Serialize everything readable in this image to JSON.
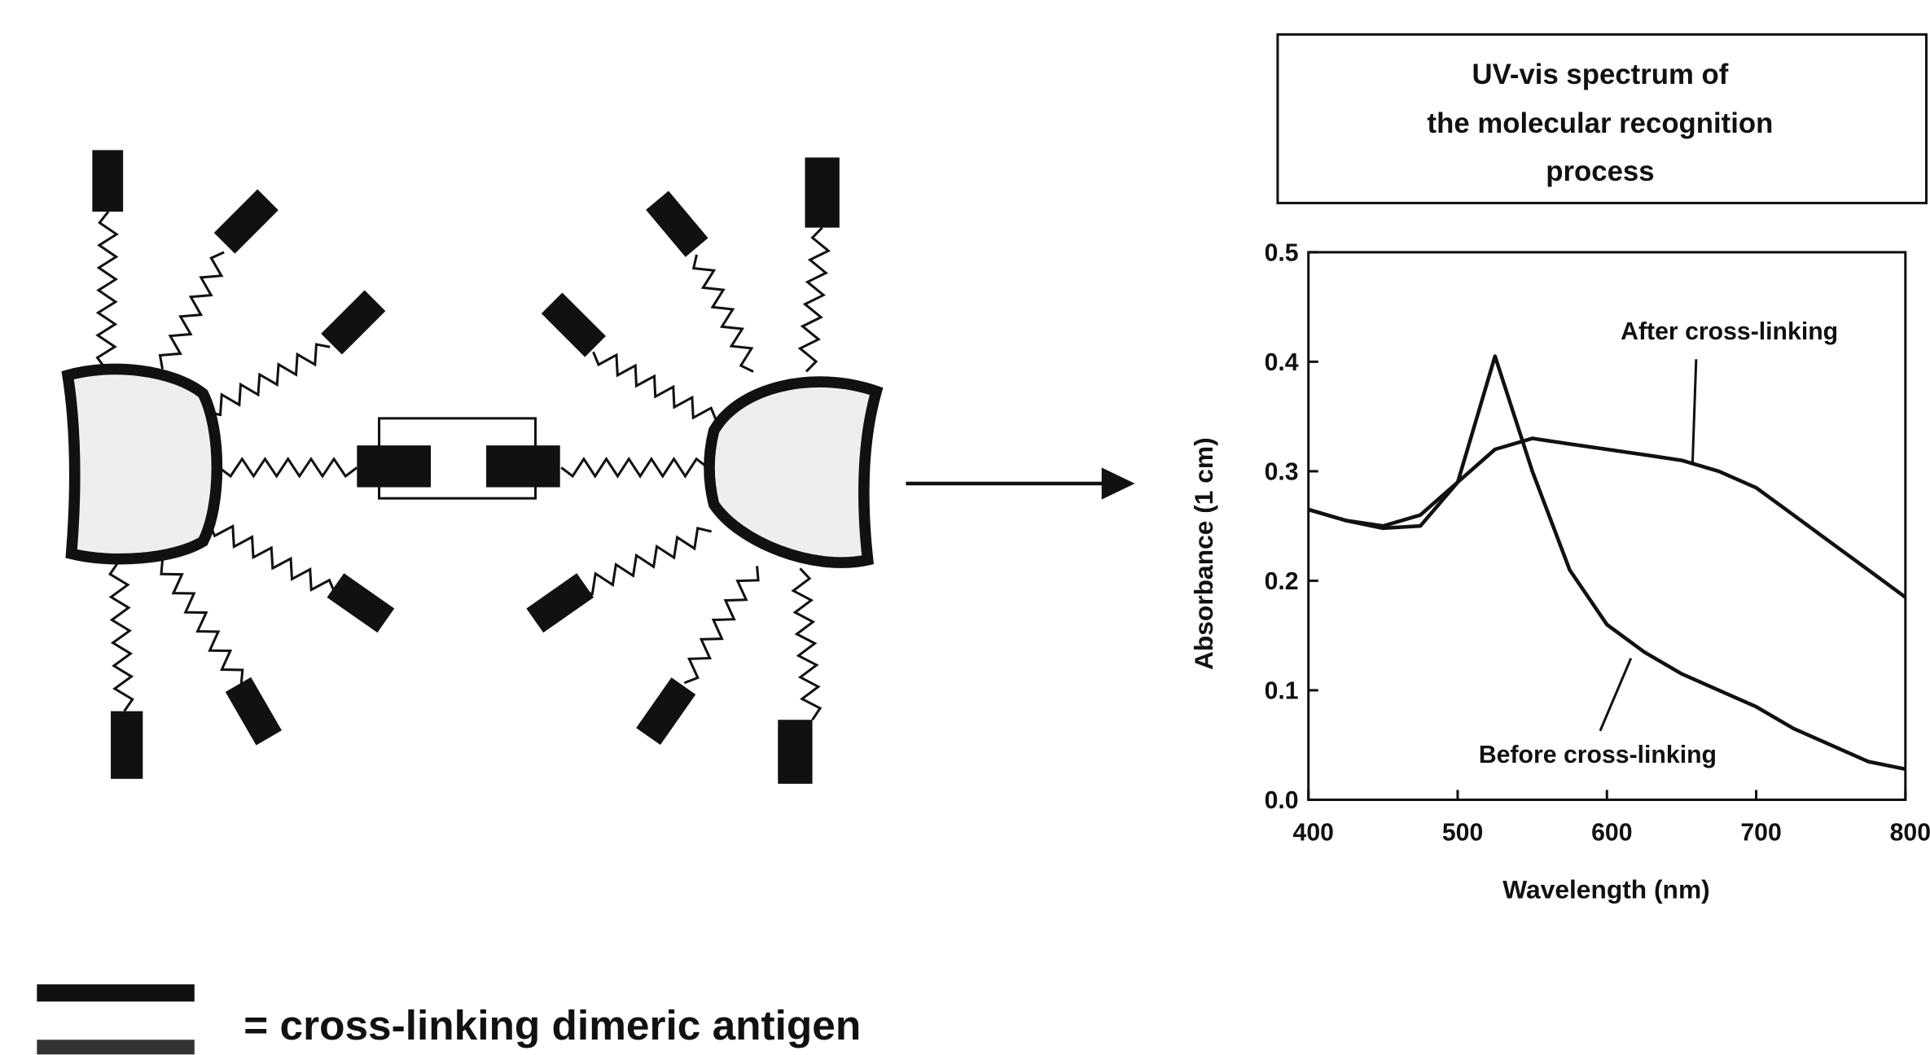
{
  "chart_data": {
    "type": "line",
    "title": [
      "UV-vis spectrum of",
      "the molecular recognition",
      "process"
    ],
    "x_label": "Wavelength (nm)",
    "y_label": "Absorbance (1 cm)",
    "x": [
      400,
      425,
      450,
      475,
      500,
      525,
      550,
      575,
      600,
      625,
      650,
      675,
      700,
      725,
      750,
      775,
      800
    ],
    "series": [
      {
        "name": "After cross-linking",
        "color": "#111111",
        "values": [
          0.265,
          0.255,
          0.25,
          0.26,
          0.29,
          0.32,
          0.33,
          0.325,
          0.32,
          0.315,
          0.31,
          0.3,
          0.285,
          0.26,
          0.235,
          0.21,
          0.185
        ]
      },
      {
        "name": "Before cross-linking",
        "color": "#111111",
        "values": [
          0.265,
          0.255,
          0.248,
          0.25,
          0.29,
          0.405,
          0.3,
          0.21,
          0.16,
          0.135,
          0.115,
          0.1,
          0.085,
          0.065,
          0.05,
          0.035,
          0.028
        ]
      }
    ],
    "xlim": [
      400,
      800
    ],
    "xticks": [
      400,
      500,
      600,
      700,
      800
    ],
    "ylim": [
      0,
      0.5
    ],
    "yticks": [
      {
        "value": 0,
        "label": "0.0"
      },
      0.1,
      0.2,
      0.3,
      0.4,
      0.5
    ]
  },
  "legend_text": "= cross-linking dimeric antigen"
}
